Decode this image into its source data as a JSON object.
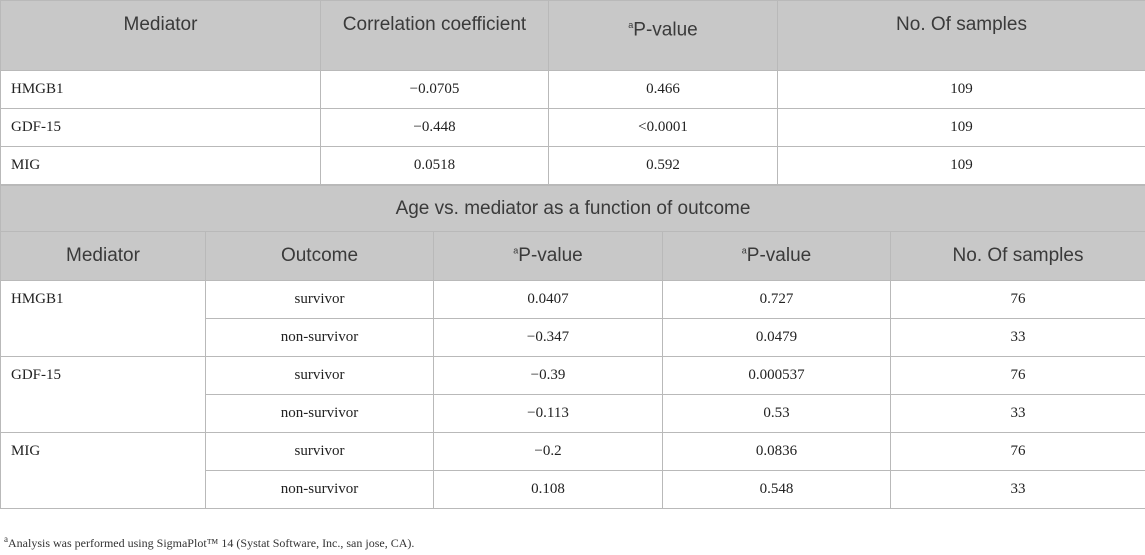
{
  "table1": {
    "headers": [
      "Mediator",
      "Correlation coefficient",
      "P-value",
      "No. Of samples"
    ],
    "rows": [
      [
        "HMGB1",
        "−0.0705",
        "0.466",
        "109"
      ],
      [
        "GDF-15",
        "−0.448",
        "<0.0001",
        "109"
      ],
      [
        "MIG",
        "0.0518",
        "0.592",
        "109"
      ]
    ]
  },
  "table2": {
    "subtitle": "Age vs. mediator as a function of outcome",
    "headers": [
      "Mediator",
      "Outcome",
      "P-value",
      "P-value",
      "No. Of samples"
    ],
    "groups": [
      {
        "mediator": "HMGB1",
        "rows": [
          [
            "survivor",
            "0.0407",
            "0.727",
            "76"
          ],
          [
            "non-survivor",
            "−0.347",
            "0.0479",
            "33"
          ]
        ]
      },
      {
        "mediator": "GDF-15",
        "rows": [
          [
            "survivor",
            "−0.39",
            "0.000537",
            "76"
          ],
          [
            "non-survivor",
            "−0.113",
            "0.53",
            "33"
          ]
        ]
      },
      {
        "mediator": "MIG",
        "rows": [
          [
            "survivor",
            "−0.2",
            "0.0836",
            "76"
          ],
          [
            "non-survivor",
            "0.108",
            "0.548",
            "33"
          ]
        ]
      }
    ]
  },
  "footnote": {
    "marker": "a",
    "text": "Analysis was performed using SigmaPlot™ 14 (Systat Software, Inc., san jose, CA)."
  }
}
